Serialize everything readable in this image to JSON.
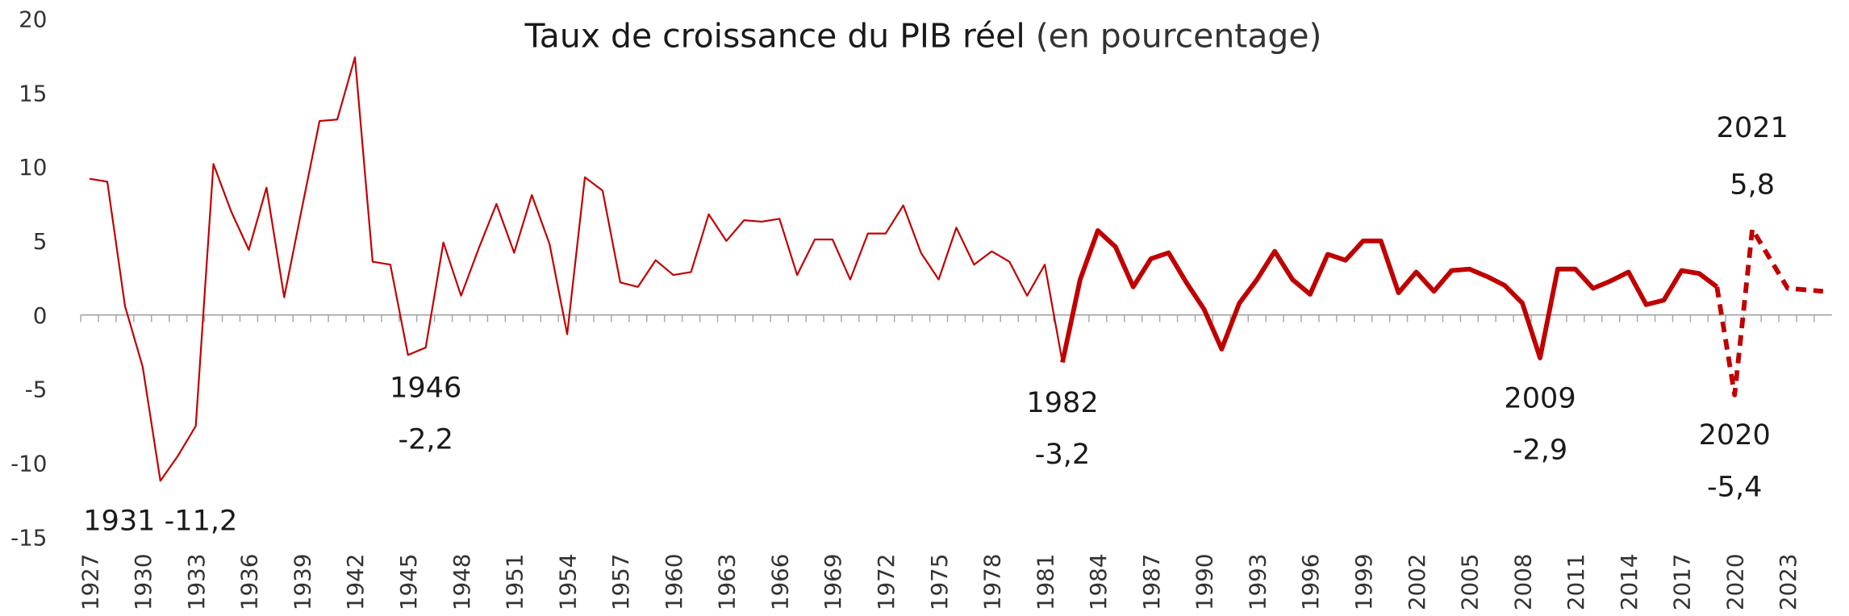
{
  "chart_data": {
    "type": "line",
    "title": "Taux de croissance du PIB réel",
    "subtitle": "(en pourcentage)",
    "x": [
      1927,
      1928,
      1929,
      1930,
      1931,
      1932,
      1933,
      1934,
      1935,
      1936,
      1937,
      1938,
      1939,
      1940,
      1941,
      1942,
      1943,
      1944,
      1945,
      1946,
      1947,
      1948,
      1949,
      1950,
      1951,
      1952,
      1953,
      1954,
      1955,
      1956,
      1957,
      1958,
      1959,
      1960,
      1961,
      1962,
      1963,
      1964,
      1965,
      1966,
      1967,
      1968,
      1969,
      1970,
      1971,
      1972,
      1973,
      1974,
      1975,
      1976,
      1977,
      1978,
      1979,
      1980,
      1981,
      1982,
      1983,
      1984,
      1985,
      1986,
      1987,
      1988,
      1989,
      1990,
      1991,
      1992,
      1993,
      1994,
      1995,
      1996,
      1997,
      1998,
      1999,
      2000,
      2001,
      2002,
      2003,
      2004,
      2005,
      2006,
      2007,
      2008,
      2009,
      2010,
      2011,
      2012,
      2013,
      2014,
      2015,
      2016,
      2017,
      2018,
      2019,
      2020,
      2021,
      2022,
      2023,
      2024,
      2025
    ],
    "series": [
      {
        "color": "#c00000",
        "width": 1.5,
        "dashed": false,
        "values": [
          9.2,
          9.0,
          0.6,
          -3.5,
          -11.2,
          -9.5,
          -7.5,
          10.2,
          7.0,
          4.4,
          8.6,
          1.2,
          7.2,
          13.1,
          13.2,
          17.4,
          3.6,
          3.4,
          -2.7,
          -2.2,
          4.9,
          1.3,
          4.5,
          7.5,
          4.2,
          8.1,
          4.8,
          -1.3,
          9.3,
          8.4,
          2.2,
          1.9,
          3.7,
          2.7,
          2.9,
          6.8,
          5.0,
          6.4,
          6.3,
          6.5,
          2.7,
          5.1,
          5.1,
          2.4,
          5.5,
          5.5,
          7.4,
          4.2,
          2.4,
          5.9,
          3.4,
          4.3,
          3.6,
          1.3,
          3.4,
          -3.2,
          null,
          null,
          null,
          null,
          null,
          null,
          null,
          null,
          null,
          null,
          null,
          null,
          null,
          null,
          null,
          null,
          null,
          null,
          null,
          null,
          null,
          null,
          null,
          null,
          null,
          null,
          null,
          null,
          null,
          null,
          null,
          null,
          null,
          null,
          null,
          null,
          null,
          null,
          null,
          null,
          null,
          null,
          null
        ]
      },
      {
        "color": "#c00000",
        "width": 4,
        "dashed": false,
        "values": [
          null,
          null,
          null,
          null,
          null,
          null,
          null,
          null,
          null,
          null,
          null,
          null,
          null,
          null,
          null,
          null,
          null,
          null,
          null,
          null,
          null,
          null,
          null,
          null,
          null,
          null,
          null,
          null,
          null,
          null,
          null,
          null,
          null,
          null,
          null,
          null,
          null,
          null,
          null,
          null,
          null,
          null,
          null,
          null,
          null,
          null,
          null,
          null,
          null,
          null,
          null,
          null,
          null,
          null,
          null,
          -3.2,
          2.4,
          5.7,
          4.6,
          1.9,
          3.8,
          4.2,
          2.2,
          0.4,
          -2.3,
          0.8,
          2.4,
          4.3,
          2.4,
          1.4,
          4.1,
          3.7,
          5.0,
          5.0,
          1.5,
          2.9,
          1.6,
          3.0,
          3.1,
          2.6,
          2.0,
          0.8,
          -2.9,
          3.1,
          3.1,
          1.8,
          2.3,
          2.9,
          0.7,
          1.0,
          3.0,
          2.8,
          1.9,
          null,
          null,
          null,
          null,
          null,
          null
        ]
      },
      {
        "color": "#c00000",
        "width": 4,
        "dashed": true,
        "values": [
          null,
          null,
          null,
          null,
          null,
          null,
          null,
          null,
          null,
          null,
          null,
          null,
          null,
          null,
          null,
          null,
          null,
          null,
          null,
          null,
          null,
          null,
          null,
          null,
          null,
          null,
          null,
          null,
          null,
          null,
          null,
          null,
          null,
          null,
          null,
          null,
          null,
          null,
          null,
          null,
          null,
          null,
          null,
          null,
          null,
          null,
          null,
          null,
          null,
          null,
          null,
          null,
          null,
          null,
          null,
          null,
          null,
          null,
          null,
          null,
          null,
          null,
          null,
          null,
          null,
          null,
          null,
          null,
          null,
          null,
          null,
          null,
          null,
          null,
          null,
          null,
          null,
          null,
          null,
          null,
          null,
          null,
          null,
          null,
          null,
          null,
          null,
          null,
          null,
          null,
          null,
          null,
          1.9,
          -5.4,
          5.8,
          3.8,
          1.8,
          1.7,
          1.6
        ]
      }
    ],
    "xlim": [
      1927,
      2025
    ],
    "xticks": [
      1927,
      1930,
      1933,
      1936,
      1939,
      1942,
      1945,
      1948,
      1951,
      1954,
      1957,
      1960,
      1963,
      1966,
      1969,
      1972,
      1975,
      1978,
      1981,
      1984,
      1987,
      1990,
      1993,
      1996,
      1999,
      2002,
      2005,
      2008,
      2011,
      2014,
      2017,
      2020,
      2023
    ],
    "ylim": [
      -15,
      20
    ],
    "yticks": [
      -15,
      -10,
      -5,
      0,
      5,
      10,
      15,
      20
    ],
    "grid": false,
    "annotations": [
      {
        "lines": [
          "1931 -11,2"
        ]
      },
      {
        "lines": [
          "1946",
          "-2,2"
        ]
      },
      {
        "lines": [
          "1982",
          "-3,2"
        ]
      },
      {
        "lines": [
          "2009",
          "-2,9"
        ]
      },
      {
        "lines": [
          "2020",
          "-5,4"
        ]
      },
      {
        "lines": [
          "2021",
          "5,8"
        ]
      }
    ]
  }
}
